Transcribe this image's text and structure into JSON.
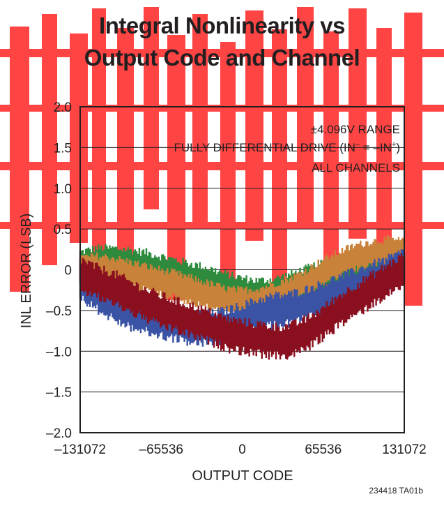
{
  "chart_data": {
    "type": "line",
    "title_line1": "Integral Nonlinearity vs",
    "title_line2": "Output Code and Channel",
    "xlabel": "OUTPUT CODE",
    "ylabel": "INL ERROR (LSB)",
    "xlim": [
      -131072,
      131072
    ],
    "ylim": [
      -2.0,
      2.0
    ],
    "x_ticks": [
      -131072,
      -65536,
      0,
      65536,
      131072
    ],
    "x_tick_labels": [
      "–131072",
      "–65536",
      "0",
      "65536",
      "131072"
    ],
    "y_ticks": [
      2.0,
      1.5,
      1.0,
      0.5,
      0,
      -0.5,
      -1.0,
      -1.5,
      -2.0
    ],
    "y_tick_labels": [
      "2.0",
      "1.5",
      "1.0",
      "0.5",
      "0",
      "–0.5",
      "–1.0",
      "–1.5",
      "–2.0"
    ],
    "grid": true,
    "annotations": [
      "±4.096V RANGE",
      "FULLY DIFFERENTIAL DRIVE (IN",
      "–",
      " = –IN",
      "+",
      ")",
      "ALL CHANNELS"
    ],
    "x": [
      -131072,
      -117965,
      -104858,
      -91750,
      -78643,
      -65536,
      -52429,
      -39322,
      -26214,
      -13107,
      0,
      13107,
      26214,
      39322,
      52429,
      65536,
      78643,
      91750,
      104858,
      117965,
      131072
    ],
    "series": [
      {
        "color": "#2e8b3e",
        "values": [
          0.05,
          0.1,
          0.1,
          0.08,
          0.05,
          0.0,
          -0.05,
          -0.1,
          -0.15,
          -0.22,
          -0.27,
          -0.3,
          -0.28,
          -0.22,
          -0.15,
          -0.08,
          -0.02,
          0.03,
          0.06,
          0.07,
          0.08
        ],
        "spread": 0.22
      },
      {
        "color": "#c9823a",
        "values": [
          0.0,
          0.02,
          0.0,
          -0.05,
          -0.1,
          -0.15,
          -0.2,
          -0.26,
          -0.32,
          -0.38,
          -0.4,
          -0.38,
          -0.32,
          -0.25,
          -0.15,
          -0.03,
          0.07,
          0.15,
          0.2,
          0.22,
          0.2
        ],
        "spread": 0.2
      },
      {
        "color": "#3a53a4",
        "values": [
          -0.15,
          -0.3,
          -0.42,
          -0.52,
          -0.58,
          -0.63,
          -0.67,
          -0.72,
          -0.72,
          -0.68,
          -0.62,
          -0.55,
          -0.5,
          -0.48,
          -0.42,
          -0.35,
          -0.27,
          -0.2,
          -0.12,
          -0.05,
          0.05
        ],
        "spread": 0.24
      },
      {
        "color": "#8a1020",
        "values": [
          -0.05,
          -0.15,
          -0.22,
          -0.32,
          -0.42,
          -0.5,
          -0.57,
          -0.63,
          -0.7,
          -0.78,
          -0.82,
          -0.85,
          -0.88,
          -0.87,
          -0.78,
          -0.65,
          -0.5,
          -0.37,
          -0.25,
          -0.12,
          0.0
        ],
        "spread": 0.24
      }
    ]
  },
  "figure_code": "234418 TA01b",
  "watermark_color": "#ff0000"
}
